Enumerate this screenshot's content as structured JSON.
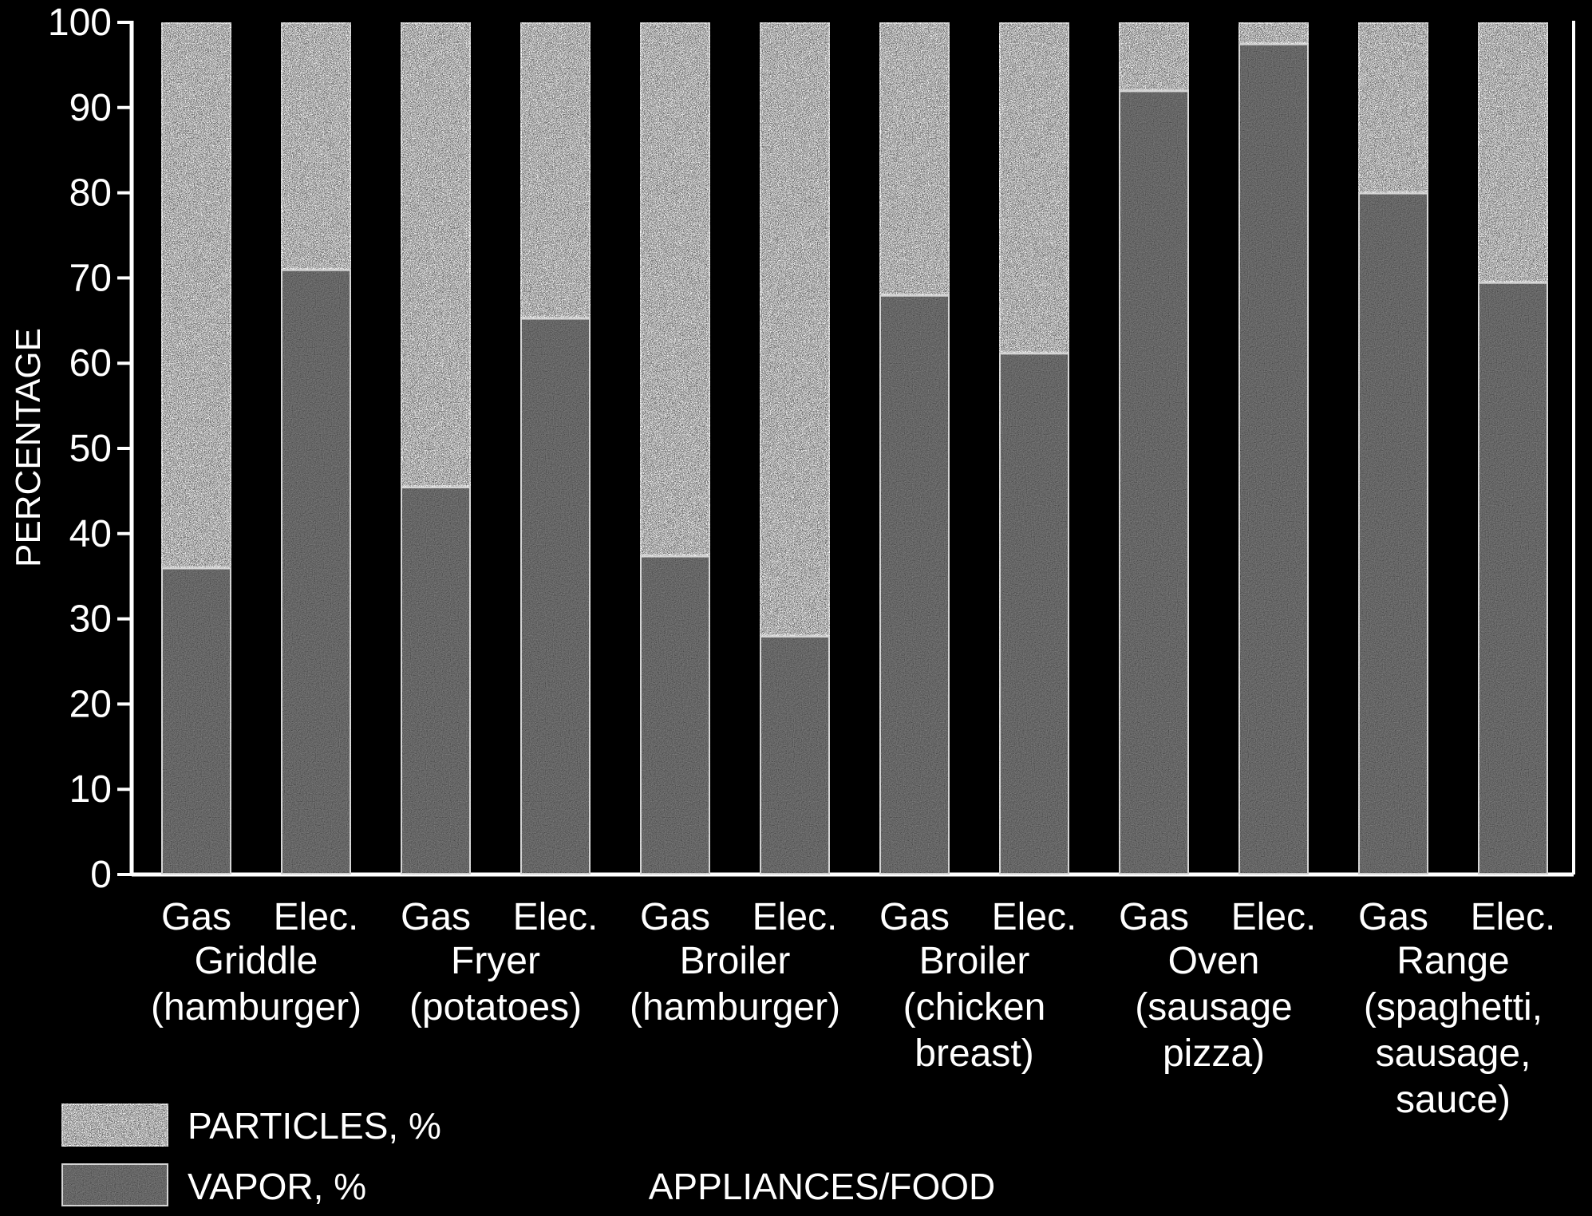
{
  "chart_data": {
    "type": "bar",
    "stacked": true,
    "ylabel": "PERCENTAGE",
    "xlabel": "APPLIANCES/FOOD",
    "ylim": [
      0,
      100
    ],
    "yticks": [
      "0",
      "10",
      "20",
      "30",
      "40",
      "50",
      "60",
      "70",
      "80",
      "90",
      "100"
    ],
    "categories": [
      "Gas",
      "Elec.",
      "Gas",
      "Elec.",
      "Gas",
      "Elec.",
      "Gas",
      "Elec.",
      "Gas",
      "Elec.",
      "Gas",
      "Elec."
    ],
    "groups": [
      {
        "lines": [
          "Griddle",
          "(hamburger)"
        ]
      },
      {
        "lines": [
          "Fryer",
          "(potatoes)"
        ]
      },
      {
        "lines": [
          "Broiler",
          "(hamburger)"
        ]
      },
      {
        "lines": [
          "Broiler",
          "(chicken",
          "breast)"
        ]
      },
      {
        "lines": [
          "Oven",
          "(sausage",
          "pizza)"
        ]
      },
      {
        "lines": [
          "Range",
          "(spaghetti,",
          "sausage,",
          "sauce)"
        ]
      }
    ],
    "series": [
      {
        "name": "VAPOR, %",
        "values": [
          36,
          71,
          45.5,
          65.3,
          37.4,
          28,
          68,
          61.2,
          92,
          97.5,
          80,
          69.5
        ]
      },
      {
        "name": "PARTICLES, %",
        "values": [
          64,
          29,
          54.5,
          34.7,
          62.6,
          72,
          32,
          38.8,
          8,
          2.5,
          20,
          30.5
        ]
      }
    ],
    "legend_position": "bottom-left",
    "colors": {
      "vapor": "#3a3a3a",
      "particles": "#8f8f8f",
      "background": "#000000",
      "outline": "#ffffff"
    }
  }
}
